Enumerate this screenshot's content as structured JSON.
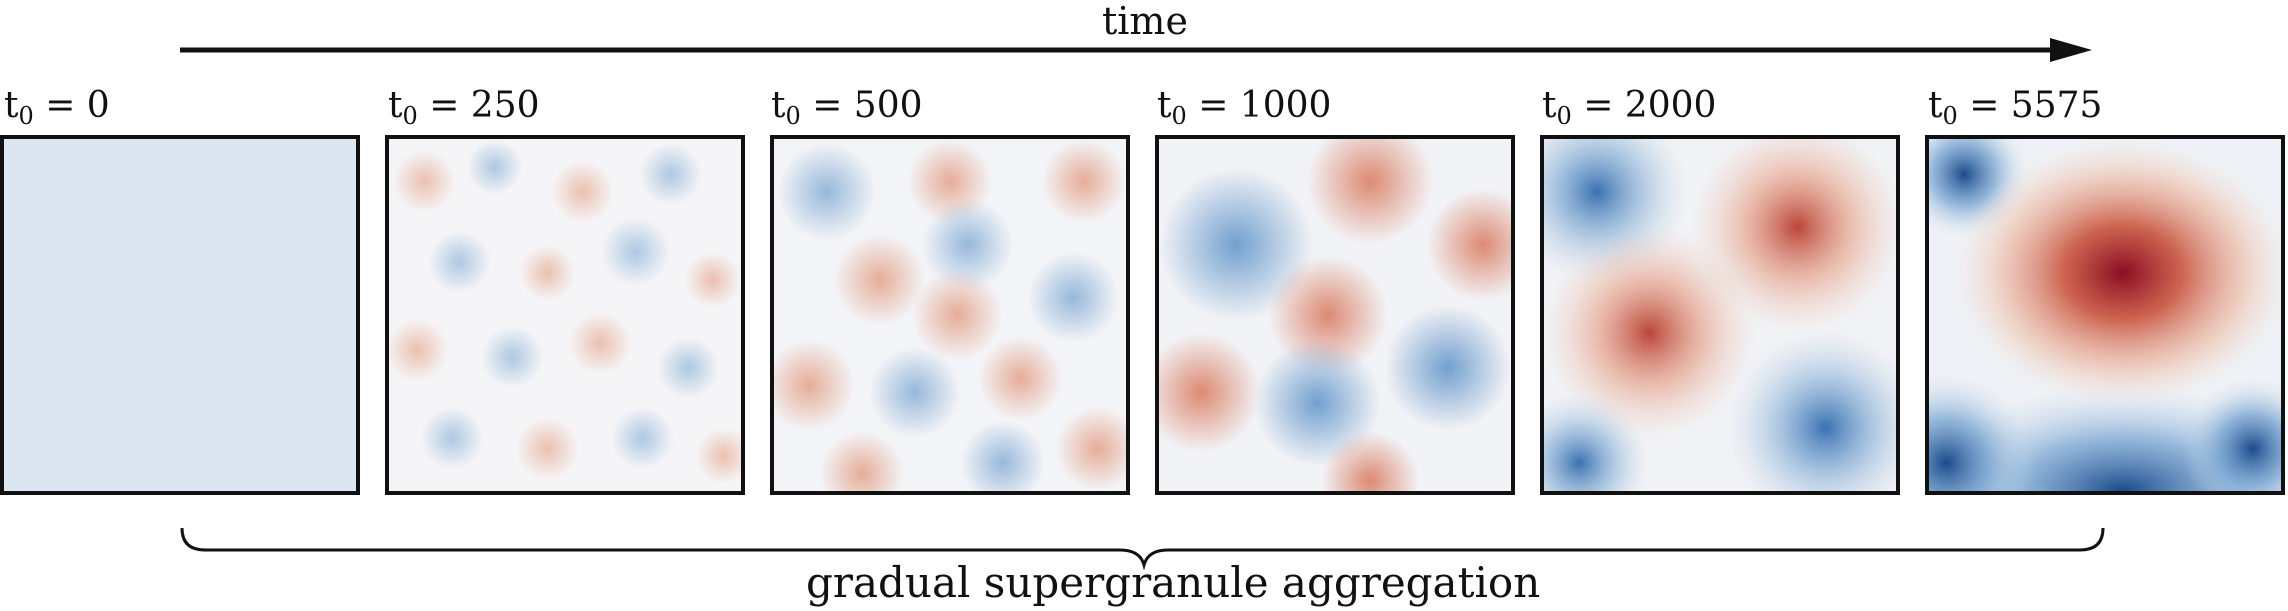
{
  "time_label": "time",
  "caption": "gradual supergranule aggregation",
  "panels": [
    {
      "t": "t",
      "sub": "0",
      "rest": " = 0",
      "level": 0
    },
    {
      "t": "t",
      "sub": "0",
      "rest": " = 250",
      "level": 1
    },
    {
      "t": "t",
      "sub": "0",
      "rest": " = 500",
      "level": 2
    },
    {
      "t": "t",
      "sub": "0",
      "rest": " = 1000",
      "level": 3
    },
    {
      "t": "t",
      "sub": "0",
      "rest": " = 2000",
      "level": 4
    },
    {
      "t": "t",
      "sub": "0",
      "rest": " = 5575",
      "level": 5
    }
  ],
  "colors": {
    "red": "#b2182b",
    "blue": "#2166ac",
    "uniform": "#dce6f0",
    "frame": "#111111"
  }
}
